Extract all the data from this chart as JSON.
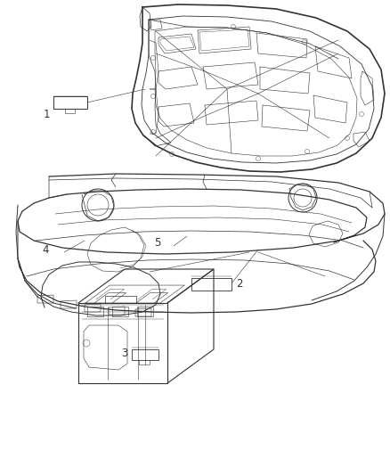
{
  "background_color": "#ffffff",
  "fig_width": 4.38,
  "fig_height": 5.33,
  "dpi": 100,
  "line_color": "#333333",
  "line_width": 0.7,
  "font_size": 8.5
}
